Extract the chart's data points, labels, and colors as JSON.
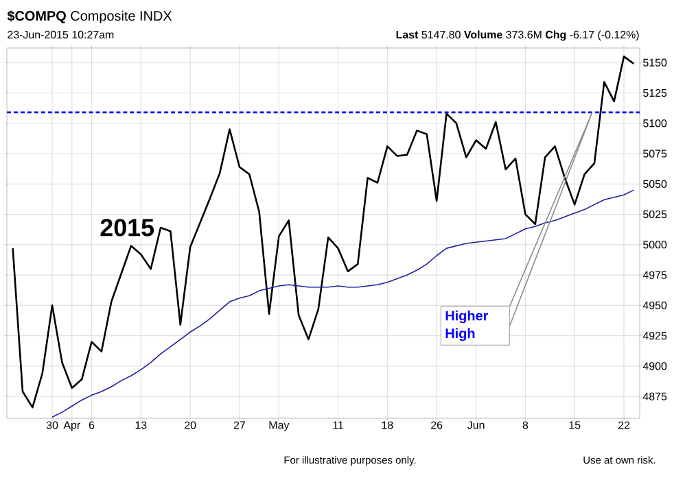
{
  "chart_data": {
    "type": "line",
    "title": "**$COMPQ** Composite INDX",
    "subtitle": "23-Jun-2015 10:27am",
    "categories": [
      null,
      null,
      null,
      null,
      "30",
      null,
      "Apr",
      null,
      "6",
      null,
      null,
      null,
      null,
      "13",
      null,
      null,
      null,
      null,
      "20",
      null,
      null,
      null,
      null,
      "27",
      null,
      null,
      null,
      "May",
      null,
      null,
      null,
      null,
      null,
      "11",
      null,
      null,
      null,
      null,
      "18",
      null,
      null,
      null,
      null,
      "26",
      null,
      null,
      null,
      "Jun",
      null,
      null,
      null,
      null,
      "8",
      null,
      null,
      null,
      null,
      "15",
      null,
      null,
      null,
      null,
      "22",
      null
    ],
    "series": [
      {
        "color": "#000000",
        "values": [
          4997,
          4879,
          4866,
          4894,
          4950,
          4903,
          4882,
          4889,
          4920,
          4912,
          4953,
          4976,
          4999,
          4992,
          4980,
          5014,
          5011,
          4934,
          4998,
          5018,
          5038,
          5059,
          5095,
          5064,
          5058,
          5027,
          4943,
          5007,
          5020,
          4942,
          4922,
          4947,
          5006,
          4997,
          4978,
          4984,
          5055,
          5051,
          5081,
          5073,
          5074,
          5094,
          5091,
          5036,
          5108,
          5100,
          5072,
          5086,
          5079,
          5101,
          5062,
          5071,
          5025,
          5017,
          5072,
          5081,
          5055,
          5033,
          5058,
          5067,
          5134,
          5118,
          5155,
          5149
        ]
      },
      {
        "color": "#1f1f9f",
        "values": [
          null,
          null,
          null,
          null,
          4858,
          4862,
          4867,
          4872,
          4876,
          4879,
          4883,
          4888,
          4892,
          4897,
          4903,
          4910,
          4916,
          4922,
          4928,
          4933,
          4939,
          4946,
          4953,
          4956,
          4958,
          4962,
          4964,
          4966,
          4967,
          4966,
          4965,
          4965,
          4965,
          4966,
          4965,
          4965,
          4966,
          4967,
          4969,
          4972,
          4975,
          4979,
          4984,
          4991,
          4997,
          4999,
          5001,
          5002,
          5003,
          5004,
          5005,
          5009,
          5013,
          5015,
          5018,
          5020,
          5023,
          5026,
          5029,
          5033,
          5037,
          5039,
          5041,
          5045
        ]
      }
    ],
    "ylim": [
      4857,
      5162
    ],
    "yticks": [
      4875,
      4900,
      4925,
      4950,
      4975,
      5000,
      5025,
      5050,
      5075,
      5100,
      5125,
      5150
    ],
    "grid": true,
    "ref_lines": [
      {
        "axis": "y",
        "value": 5109,
        "color": "#0000ff",
        "line_style": "dashed"
      }
    ],
    "annotations": [
      "**Last** 5147.80 **Volume** 373.6M **Chg** -6.17 (-0.12%)",
      "2015",
      "Higher High",
      "For illustrative purposes only.",
      "Use at own risk."
    ]
  }
}
